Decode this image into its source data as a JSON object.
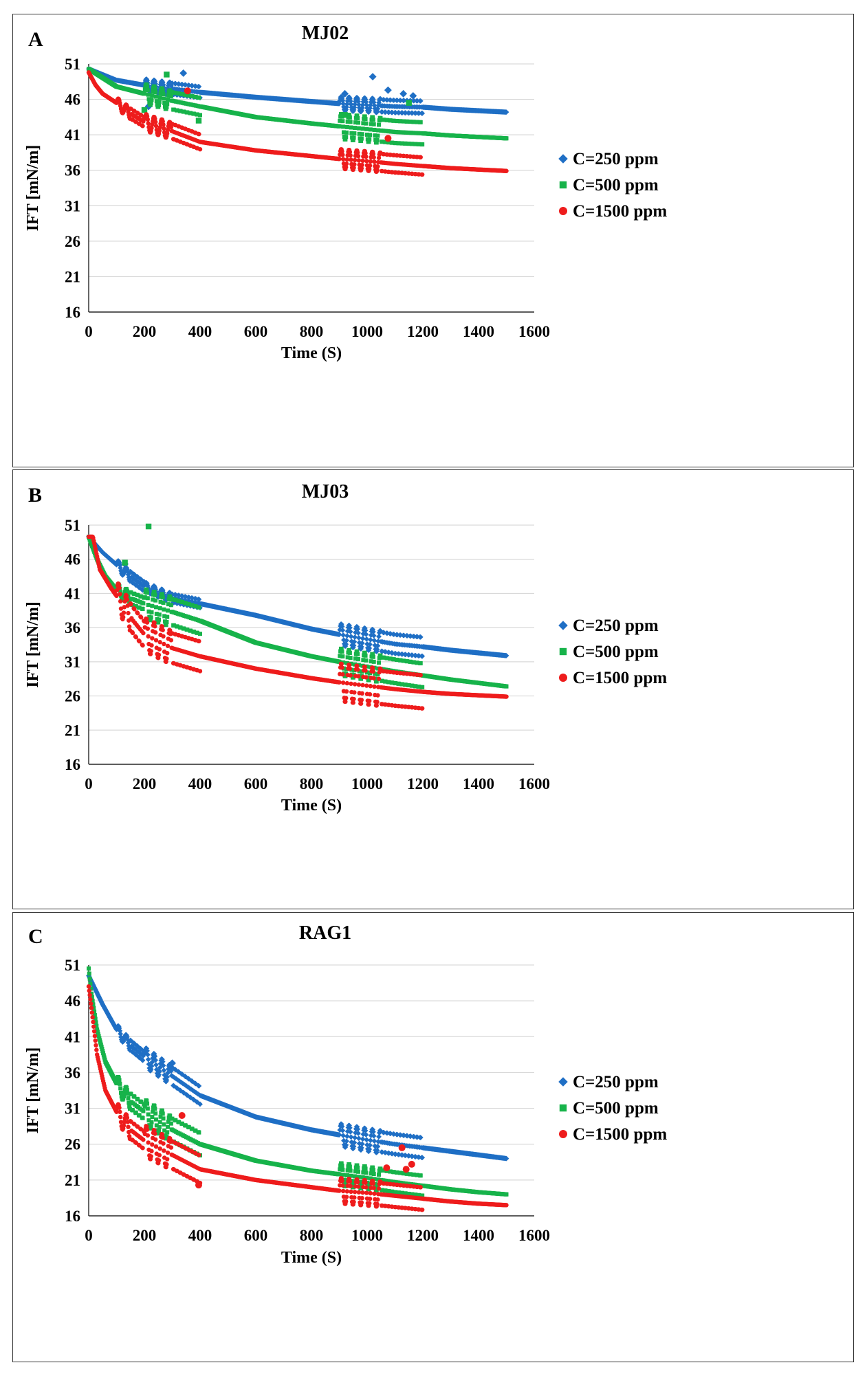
{
  "colors": {
    "c250": "#1f6fc5",
    "c500": "#17b34a",
    "c1500": "#ee1c1c"
  },
  "chart_data": [
    {
      "panel": "A",
      "title": "MJ02",
      "type": "scatter",
      "xlabel": "Time (S)",
      "ylabel": "IFT [mN/m]",
      "xlim": [
        0,
        1600
      ],
      "ylim": [
        16,
        51
      ],
      "xticks": [
        "0",
        "200",
        "400",
        "600",
        "800",
        "1000",
        "1200",
        "1400",
        "1600"
      ],
      "yticks": [
        "51",
        "46",
        "41",
        "36",
        "31",
        "26",
        "21",
        "16"
      ],
      "series": [
        {
          "name": "C=250 ppm",
          "marker": "diamond",
          "color": "#1f6fc5",
          "x": [
            0,
            100,
            200,
            300,
            400,
            600,
            800,
            900,
            1000,
            1100,
            1200,
            1300,
            1400,
            1500
          ],
          "y": [
            50.3,
            48.7,
            48.0,
            47.5,
            47.0,
            46.3,
            45.7,
            45.4,
            45.2,
            45.0,
            44.9,
            44.6,
            44.4,
            44.2
          ],
          "osc": [
            [
              200,
              400,
              0.9
            ],
            [
              900,
              1200,
              1.0
            ]
          ],
          "outliers": [
            [
              340,
              49.7
            ],
            [
              920,
              46.8
            ],
            [
              1020,
              49.2
            ],
            [
              1075,
              47.3
            ],
            [
              1130,
              46.8
            ],
            [
              1165,
              46.5
            ],
            [
              215,
              45.0
            ]
          ]
        },
        {
          "name": "C=500 ppm",
          "marker": "square",
          "color": "#17b34a",
          "x": [
            0,
            100,
            200,
            300,
            400,
            600,
            800,
            900,
            1000,
            1100,
            1200,
            1300,
            1400,
            1500
          ],
          "y": [
            50.3,
            47.8,
            46.8,
            45.8,
            45.0,
            43.5,
            42.6,
            42.2,
            41.8,
            41.4,
            41.2,
            40.9,
            40.7,
            40.5
          ],
          "osc": [
            [
              200,
              400,
              1.4
            ],
            [
              900,
              1200,
              1.8
            ]
          ],
          "outliers": [
            [
              280,
              49.5
            ],
            [
              200,
              44.5
            ],
            [
              395,
              43.0
            ],
            [
              920,
              43.8
            ],
            [
              1150,
              45.5
            ]
          ]
        },
        {
          "name": "C=1500 ppm",
          "marker": "circle",
          "color": "#ee1c1c",
          "x": [
            0,
            25,
            50,
            100,
            150,
            200,
            300,
            400,
            600,
            800,
            900,
            1000,
            1100,
            1200,
            1300,
            1400,
            1500
          ],
          "y": [
            49.8,
            48.0,
            46.8,
            45.5,
            44.0,
            42.8,
            41.5,
            40.0,
            38.8,
            38.0,
            37.6,
            37.3,
            36.9,
            36.6,
            36.3,
            36.1,
            35.9
          ],
          "osc": [
            [
              100,
              200,
              0.8
            ],
            [
              200,
              400,
              1.2
            ],
            [
              900,
              1200,
              1.4
            ]
          ],
          "outliers": [
            [
              355,
              47.2
            ],
            [
              1075,
              40.5
            ]
          ]
        }
      ]
    },
    {
      "panel": "B",
      "title": "MJ03",
      "type": "scatter",
      "xlabel": "Time (S)",
      "ylabel": "IFT [mN/m]",
      "xlim": [
        0,
        1600
      ],
      "ylim": [
        16,
        51
      ],
      "xticks": [
        "0",
        "200",
        "400",
        "600",
        "800",
        "1000",
        "1200",
        "1400",
        "1600"
      ],
      "yticks": [
        "51",
        "46",
        "41",
        "36",
        "31",
        "26",
        "21",
        "16"
      ],
      "series": [
        {
          "name": "C=250 ppm",
          "marker": "diamond",
          "color": "#1f6fc5",
          "x": [
            0,
            50,
            100,
            150,
            200,
            300,
            400,
            600,
            800,
            900,
            1000,
            1100,
            1200,
            1300,
            1400,
            1500
          ],
          "y": [
            49.3,
            47.0,
            45.2,
            43.5,
            42.0,
            40.3,
            39.5,
            37.8,
            35.8,
            35.0,
            34.3,
            33.6,
            33.2,
            32.7,
            32.3,
            31.9
          ],
          "osc": [
            [
              100,
              200,
              0.8
            ],
            [
              200,
              400,
              0.7
            ],
            [
              900,
              1200,
              1.6
            ]
          ],
          "outliers": [
            [
              130,
              45.3
            ]
          ]
        },
        {
          "name": "C=500 ppm",
          "marker": "square",
          "color": "#17b34a",
          "x": [
            0,
            30,
            60,
            100,
            150,
            200,
            300,
            400,
            600,
            800,
            900,
            1000,
            1100,
            1200,
            1300,
            1400,
            1500
          ],
          "y": [
            49.3,
            46.0,
            43.5,
            41.5,
            40.3,
            39.5,
            38.3,
            37.0,
            33.8,
            31.8,
            31.0,
            30.3,
            29.6,
            29.0,
            28.4,
            27.9,
            27.4
          ],
          "osc": [
            [
              100,
              200,
              1.0
            ],
            [
              200,
              400,
              2.2
            ],
            [
              900,
              1200,
              2.0
            ]
          ],
          "outliers": [
            [
              215,
              50.8
            ],
            [
              130,
              45.5
            ]
          ]
        },
        {
          "name": "C=1500 ppm",
          "marker": "circle",
          "color": "#ee1c1c",
          "x": [
            0,
            15,
            40,
            80,
            120,
            160,
            200,
            300,
            400,
            600,
            800,
            900,
            1000,
            1100,
            1200,
            1300,
            1400,
            1500
          ],
          "y": [
            49.3,
            49.3,
            44.5,
            41.8,
            39.5,
            37.0,
            35.0,
            33.0,
            31.8,
            30.0,
            28.6,
            28.0,
            27.5,
            27.0,
            26.6,
            26.3,
            26.1,
            25.9
          ],
          "osc": [
            [
              100,
              200,
              2.2
            ],
            [
              200,
              400,
              2.5
            ],
            [
              900,
              1200,
              2.8
            ]
          ],
          "outliers": []
        }
      ]
    },
    {
      "panel": "C",
      "title": "RAG1",
      "type": "scatter",
      "xlabel": "Time (S)",
      "ylabel": "IFT [mN/m]",
      "xlim": [
        0,
        1600
      ],
      "ylim": [
        16,
        51
      ],
      "xticks": [
        "0",
        "200",
        "400",
        "600",
        "800",
        "1000",
        "1200",
        "1400",
        "1600"
      ],
      "yticks": [
        "51",
        "46",
        "41",
        "36",
        "31",
        "26",
        "21",
        "16"
      ],
      "series": [
        {
          "name": "C=250 ppm",
          "marker": "diamond",
          "color": "#1f6fc5",
          "x": [
            0,
            50,
            100,
            150,
            200,
            300,
            400,
            600,
            800,
            900,
            1000,
            1100,
            1200,
            1300,
            1400,
            1500
          ],
          "y": [
            49.5,
            45.5,
            42.0,
            39.8,
            38.2,
            35.5,
            32.8,
            29.8,
            28.0,
            27.3,
            26.6,
            26.0,
            25.5,
            25.0,
            24.5,
            24.0
          ],
          "osc": [
            [
              100,
              200,
              0.8
            ],
            [
              200,
              400,
              1.4
            ],
            [
              900,
              1200,
              1.6
            ]
          ],
          "outliers": [
            [
              300,
              37.3
            ]
          ]
        },
        {
          "name": "C=500 ppm",
          "marker": "square",
          "color": "#17b34a",
          "x": [
            0,
            10,
            30,
            60,
            100,
            150,
            200,
            300,
            400,
            600,
            800,
            900,
            1000,
            1100,
            1200,
            1300,
            1400,
            1500
          ],
          "y": [
            50.5,
            47.0,
            42.0,
            37.5,
            34.5,
            32.0,
            30.5,
            28.0,
            26.0,
            23.7,
            22.3,
            21.8,
            21.3,
            20.7,
            20.2,
            19.7,
            19.3,
            19.0
          ],
          "osc": [
            [
              100,
              200,
              1.2
            ],
            [
              200,
              400,
              1.8
            ],
            [
              900,
              1200,
              1.6
            ]
          ],
          "outliers": []
        },
        {
          "name": "C=1500 ppm",
          "marker": "circle",
          "color": "#ee1c1c",
          "x": [
            0,
            10,
            30,
            60,
            100,
            150,
            200,
            300,
            400,
            600,
            800,
            900,
            1000,
            1100,
            1200,
            1300,
            1400,
            1500
          ],
          "y": [
            48.0,
            45.0,
            38.5,
            33.5,
            30.5,
            28.0,
            26.5,
            24.5,
            22.5,
            21.0,
            20.0,
            19.5,
            19.2,
            18.8,
            18.4,
            18.0,
            17.7,
            17.5
          ],
          "osc": [
            [
              100,
              200,
              1.4
            ],
            [
              200,
              400,
              2.2
            ],
            [
              900,
              1200,
              1.8
            ]
          ],
          "outliers": [
            [
              335,
              30.0
            ],
            [
              395,
              20.3
            ],
            [
              1070,
              22.7
            ],
            [
              1125,
              25.5
            ],
            [
              1160,
              23.2
            ],
            [
              1140,
              22.5
            ]
          ]
        }
      ]
    }
  ]
}
